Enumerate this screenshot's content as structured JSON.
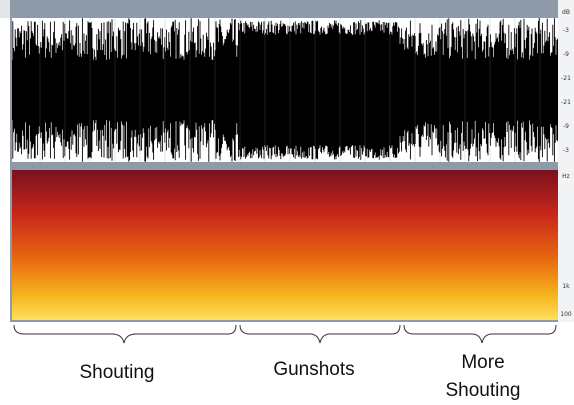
{
  "waveform": {
    "scale_unit": "dB",
    "scale_labels": [
      "-3",
      "-9",
      "-21",
      "-21",
      "-9",
      "-3"
    ]
  },
  "spectrogram": {
    "scale_unit": "Hz",
    "scale_labels": [
      "1k",
      "100"
    ]
  },
  "segments": [
    {
      "label": "Shouting"
    },
    {
      "label": "Gunshots"
    },
    {
      "label": "More Shouting"
    }
  ]
}
